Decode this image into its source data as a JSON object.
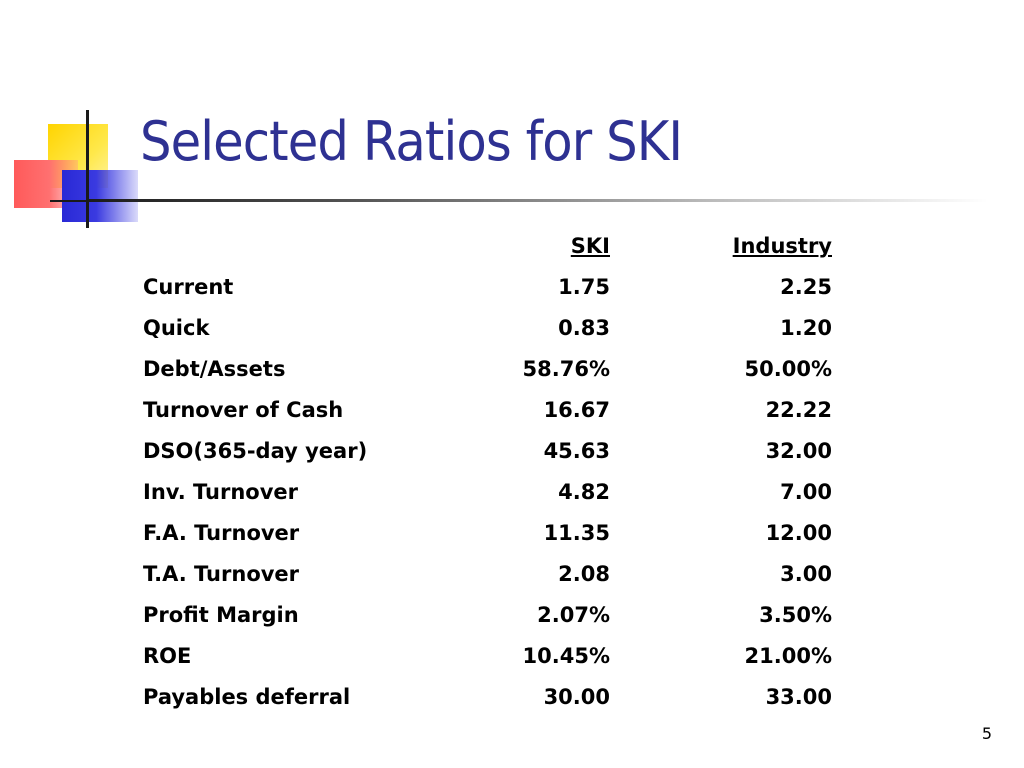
{
  "slide": {
    "title": "Selected Ratios for SKI",
    "page_number": "5"
  },
  "table": {
    "headers": {
      "label": "",
      "ski": "SKI",
      "industry": "Industry"
    },
    "rows": [
      {
        "label": "Current",
        "ski": "1.75",
        "industry": "2.25"
      },
      {
        "label": "Quick",
        "ski": "0.83",
        "industry": "1.20"
      },
      {
        "label": "Debt/Assets",
        "ski": "58.76%",
        "industry": "50.00%"
      },
      {
        "label": "Turnover of Cash",
        "ski": "16.67",
        "industry": "22.22"
      },
      {
        "label": "DSO(365-day year)",
        "ski": "45.63",
        "industry": "32.00"
      },
      {
        "label": "Inv. Turnover",
        "ski": "4.82",
        "industry": "7.00"
      },
      {
        "label": "F.A. Turnover",
        "ski": "11.35",
        "industry": "12.00"
      },
      {
        "label": "T.A. Turnover",
        "ski": "2.08",
        "industry": "3.00"
      },
      {
        "label": "Profit Margin",
        "ski": "2.07%",
        "industry": "3.50%"
      },
      {
        "label": "ROE",
        "ski": "10.45%",
        "industry": "21.00%"
      },
      {
        "label": "Payables deferral",
        "ski": "30.00",
        "industry": "33.00"
      }
    ]
  },
  "colors": {
    "title": "#2e3192",
    "logo_yellow": "#ffd400",
    "logo_red": "#ff5a5a",
    "logo_blue": "#2929d6",
    "text": "#000000"
  },
  "icons": {
    "logo": "squares-logo"
  }
}
